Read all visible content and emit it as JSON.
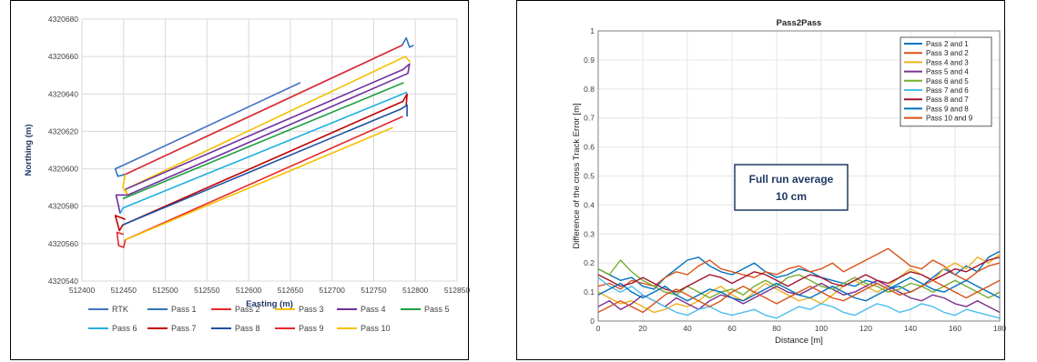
{
  "chart_data": [
    {
      "type": "line",
      "title": "",
      "xlabel": "Easting (m)",
      "ylabel": "Northing (m)",
      "xlim": [
        512400,
        512850
      ],
      "ylim": [
        4320540,
        4320680
      ],
      "xticks": [
        "512400",
        "512450",
        "512500",
        "512550",
        "512600",
        "512650",
        "512700",
        "512750",
        "512800",
        "512850"
      ],
      "yticks": [
        "4320540",
        "4320560",
        "4320580",
        "4320600",
        "4320620",
        "4320640",
        "4320660",
        "4320680"
      ],
      "grid": true,
      "legend_position": "bottom",
      "series": [
        {
          "name": "RTK",
          "color": "#4472c4",
          "points": [
            [
              512450,
              4320602
            ],
            [
              512662,
              4320646
            ]
          ]
        },
        {
          "name": "Pass 1",
          "color": "#2e75b6",
          "points": [
            [
              512450,
              4320602
            ],
            [
              512440,
              4320600
            ],
            [
              512443,
              4320596
            ],
            [
              512452,
              4320597
            ],
            [
              512784,
              4320666
            ],
            [
              512789,
              4320670
            ],
            [
              512793,
              4320665
            ],
            [
              512798,
              4320666
            ]
          ]
        },
        {
          "name": "Pass 2",
          "color": "#e8262a",
          "points": [
            [
              512452,
              4320597
            ],
            [
              512784,
              4320666
            ]
          ]
        },
        {
          "name": "Pass 3",
          "color": "#f5c000",
          "points": [
            [
              512452,
              4320597
            ],
            [
              512449,
              4320590
            ],
            [
              512455,
              4320586
            ],
            [
              512452,
              4320589
            ],
            [
              512788,
              4320660
            ],
            [
              512794,
              4320657
            ]
          ]
        },
        {
          "name": "Pass 4",
          "color": "#7030a0",
          "points": [
            [
              512452,
              4320589
            ],
            [
              512785,
              4320653
            ],
            [
              512793,
              4320656
            ],
            [
              512791,
              4320651
            ],
            [
              512786,
              4320650
            ],
            [
              512455,
              4320586
            ],
            [
              512441,
              4320586
            ],
            [
              512446,
              4320576
            ]
          ]
        },
        {
          "name": "Pass 5",
          "color": "#20a040",
          "points": [
            [
              512449,
              4320584
            ],
            [
              512786,
              4320646
            ]
          ]
        },
        {
          "name": "Pass 6",
          "color": "#20b0e0",
          "points": [
            [
              512446,
              4320576
            ],
            [
              512449,
              4320579
            ],
            [
              512785,
              4320640
            ],
            [
              512790,
              4320641
            ]
          ]
        },
        {
          "name": "Pass 7",
          "color": "#c00000",
          "points": [
            [
              512452,
              4320573
            ],
            [
              512440,
              4320575
            ],
            [
              512445,
              4320567
            ],
            [
              512449,
              4320570
            ],
            [
              512785,
              4320636
            ],
            [
              512790,
              4320640
            ],
            [
              512789,
              4320634
            ]
          ]
        },
        {
          "name": "Pass 8",
          "color": "#1f4fa0",
          "points": [
            [
              512449,
              4320570
            ],
            [
              512783,
              4320632
            ],
            [
              512790,
              4320634
            ],
            [
              512790,
              4320628
            ]
          ]
        },
        {
          "name": "Pass 9",
          "color": "#e8262a",
          "points": [
            [
              512450,
              4320565
            ],
            [
              512442,
              4320566
            ],
            [
              512444,
              4320559
            ],
            [
              512450,
              4320558
            ],
            [
              512452,
              4320562
            ],
            [
              512785,
              4320628
            ]
          ]
        },
        {
          "name": "Pass 10",
          "color": "#f5c000",
          "points": [
            [
              512452,
              4320562
            ],
            [
              512773,
              4320622
            ]
          ]
        }
      ]
    },
    {
      "type": "line",
      "title": "Pass2Pass",
      "xlabel": "Distance [m]",
      "ylabel": "Difference of the cross Track Error [m]",
      "xlim": [
        0,
        180
      ],
      "ylim": [
        0,
        1
      ],
      "xticks": [
        "0",
        "20",
        "40",
        "60",
        "80",
        "100",
        "120",
        "140",
        "160",
        "180"
      ],
      "yticks": [
        "0",
        "0.1",
        "0.2",
        "0.3",
        "0.4",
        "0.5",
        "0.6",
        "0.7",
        "0.8",
        "0.9",
        "1"
      ],
      "grid": true,
      "legend_position": "top-right",
      "annotation": [
        "Full run average",
        "10 cm"
      ],
      "x": [
        0,
        5,
        10,
        15,
        20,
        25,
        30,
        35,
        40,
        45,
        50,
        55,
        60,
        65,
        70,
        75,
        80,
        85,
        90,
        95,
        100,
        105,
        110,
        115,
        120,
        125,
        130,
        135,
        140,
        145,
        150,
        155,
        160,
        165,
        170,
        175,
        180
      ],
      "series": [
        {
          "name": "Pass 2 and 1",
          "color": "#0072bd",
          "values": [
            0.18,
            0.16,
            0.14,
            0.15,
            0.12,
            0.11,
            0.15,
            0.18,
            0.21,
            0.22,
            0.19,
            0.17,
            0.16,
            0.18,
            0.2,
            0.17,
            0.15,
            0.16,
            0.18,
            0.17,
            0.15,
            0.14,
            0.13,
            0.12,
            0.14,
            0.13,
            0.11,
            0.12,
            0.1,
            0.12,
            0.15,
            0.18,
            0.16,
            0.19,
            0.17,
            0.22,
            0.24
          ]
        },
        {
          "name": "Pass 3 and 2",
          "color": "#d95319",
          "values": [
            0.12,
            0.13,
            0.11,
            0.14,
            0.13,
            0.12,
            0.15,
            0.17,
            0.16,
            0.19,
            0.21,
            0.18,
            0.17,
            0.16,
            0.15,
            0.17,
            0.16,
            0.18,
            0.19,
            0.17,
            0.18,
            0.2,
            0.17,
            0.19,
            0.21,
            0.23,
            0.25,
            0.22,
            0.19,
            0.18,
            0.21,
            0.19,
            0.16,
            0.14,
            0.17,
            0.19,
            0.2
          ]
        },
        {
          "name": "Pass 4 and 3",
          "color": "#edb120",
          "values": [
            0.1,
            0.08,
            0.06,
            0.07,
            0.05,
            0.03,
            0.04,
            0.06,
            0.05,
            0.07,
            0.1,
            0.12,
            0.09,
            0.07,
            0.1,
            0.13,
            0.11,
            0.09,
            0.07,
            0.08,
            0.06,
            0.09,
            0.12,
            0.14,
            0.12,
            0.1,
            0.12,
            0.15,
            0.18,
            0.16,
            0.14,
            0.18,
            0.2,
            0.18,
            0.22,
            0.2,
            0.23
          ]
        },
        {
          "name": "Pass 5 and 4",
          "color": "#7e2f8e",
          "values": [
            0.05,
            0.07,
            0.04,
            0.06,
            0.09,
            0.07,
            0.05,
            0.08,
            0.06,
            0.04,
            0.07,
            0.09,
            0.08,
            0.06,
            0.08,
            0.1,
            0.12,
            0.1,
            0.09,
            0.11,
            0.13,
            0.11,
            0.09,
            0.1,
            0.12,
            0.14,
            0.12,
            0.1,
            0.08,
            0.07,
            0.09,
            0.08,
            0.06,
            0.05,
            0.07,
            0.05,
            0.03
          ]
        },
        {
          "name": "Pass 6 and 5",
          "color": "#77ac30",
          "values": [
            0.18,
            0.16,
            0.21,
            0.17,
            0.14,
            0.12,
            0.1,
            0.09,
            0.12,
            0.1,
            0.08,
            0.1,
            0.11,
            0.09,
            0.12,
            0.14,
            0.12,
            0.15,
            0.16,
            0.14,
            0.12,
            0.11,
            0.13,
            0.15,
            0.13,
            0.12,
            0.1,
            0.11,
            0.13,
            0.12,
            0.1,
            0.12,
            0.14,
            0.12,
            0.1,
            0.08,
            0.1
          ]
        },
        {
          "name": "Pass 7 and 6",
          "color": "#4dbeee",
          "values": [
            0.15,
            0.12,
            0.1,
            0.12,
            0.09,
            0.07,
            0.05,
            0.03,
            0.02,
            0.04,
            0.05,
            0.03,
            0.02,
            0.03,
            0.04,
            0.02,
            0.01,
            0.03,
            0.05,
            0.04,
            0.06,
            0.05,
            0.03,
            0.02,
            0.04,
            0.06,
            0.05,
            0.03,
            0.04,
            0.06,
            0.05,
            0.03,
            0.02,
            0.04,
            0.03,
            0.02,
            0.01
          ]
        },
        {
          "name": "Pass 8 and 7",
          "color": "#a2142f",
          "values": [
            0.16,
            0.14,
            0.12,
            0.13,
            0.15,
            0.13,
            0.11,
            0.1,
            0.12,
            0.14,
            0.16,
            0.15,
            0.13,
            0.15,
            0.17,
            0.16,
            0.14,
            0.12,
            0.14,
            0.16,
            0.15,
            0.13,
            0.12,
            0.14,
            0.16,
            0.14,
            0.13,
            0.15,
            0.17,
            0.16,
            0.14,
            0.16,
            0.18,
            0.17,
            0.19,
            0.21,
            0.22
          ]
        },
        {
          "name": "Pass 9 and 8",
          "color": "#0072bd",
          "values": [
            0.09,
            0.11,
            0.13,
            0.1,
            0.08,
            0.1,
            0.12,
            0.09,
            0.07,
            0.09,
            0.11,
            0.1,
            0.08,
            0.07,
            0.09,
            0.11,
            0.13,
            0.11,
            0.09,
            0.08,
            0.1,
            0.12,
            0.1,
            0.08,
            0.07,
            0.09,
            0.11,
            0.13,
            0.15,
            0.13,
            0.11,
            0.1,
            0.12,
            0.14,
            0.12,
            0.1,
            0.08
          ]
        },
        {
          "name": "Pass 10 and 9",
          "color": "#d95319",
          "values": [
            0.03,
            0.05,
            0.07,
            0.05,
            0.03,
            0.06,
            0.09,
            0.11,
            0.09,
            0.07,
            0.05,
            0.07,
            0.1,
            0.12,
            0.1,
            0.08,
            0.06,
            0.08,
            0.1,
            0.12,
            0.1,
            0.08,
            0.07,
            0.09,
            0.11,
            0.13,
            0.11,
            0.09,
            0.1,
            0.12,
            0.14,
            0.12,
            0.1,
            0.08,
            0.1,
            0.12,
            0.14
          ]
        }
      ]
    }
  ]
}
